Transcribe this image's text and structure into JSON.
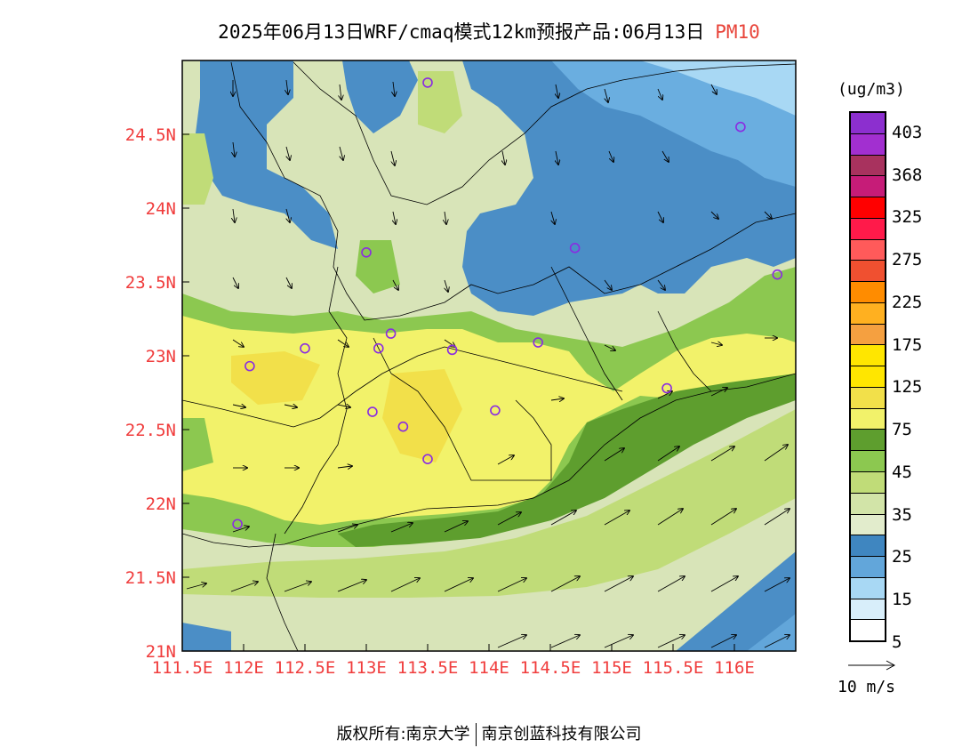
{
  "title": {
    "main": "2025年06月13日WRF/cmaq模式12km预报产品:06月13日",
    "pollutant": "PM10"
  },
  "map": {
    "lon_labels": [
      "111.5E",
      "112E",
      "112.5E",
      "113E",
      "113.5E",
      "114E",
      "114.5E",
      "115E",
      "115.5E",
      "116E"
    ],
    "lat_labels": [
      "24.5N",
      "24N",
      "23.5N",
      "23N",
      "22.5N",
      "22N",
      "21.5N",
      "21N"
    ],
    "lon_values": [
      111.5,
      112,
      112.5,
      113,
      113.5,
      114,
      114.5,
      115,
      115.5,
      116
    ],
    "lat_values": [
      24.5,
      24,
      23.5,
      23,
      22.5,
      22,
      21.5,
      21
    ],
    "lon_range": [
      111.5,
      116.5
    ],
    "lat_range": [
      21,
      25
    ],
    "accent_label_color": "#f03c3c",
    "station_color": "#8a2be2",
    "stations": [
      {
        "lon": 113.5,
        "lat": 24.85
      },
      {
        "lon": 116.05,
        "lat": 24.55
      },
      {
        "lon": 113.0,
        "lat": 23.7
      },
      {
        "lon": 114.7,
        "lat": 23.73
      },
      {
        "lon": 116.35,
        "lat": 23.55
      },
      {
        "lon": 112.5,
        "lat": 23.05
      },
      {
        "lon": 113.1,
        "lat": 23.05
      },
      {
        "lon": 113.2,
        "lat": 23.15
      },
      {
        "lon": 113.7,
        "lat": 23.04
      },
      {
        "lon": 114.4,
        "lat": 23.09
      },
      {
        "lon": 112.05,
        "lat": 22.93
      },
      {
        "lon": 115.45,
        "lat": 22.78
      },
      {
        "lon": 113.05,
        "lat": 22.62
      },
      {
        "lon": 113.3,
        "lat": 22.52
      },
      {
        "lon": 114.05,
        "lat": 22.63
      },
      {
        "lon": 113.5,
        "lat": 22.3
      },
      {
        "lon": 111.95,
        "lat": 21.86
      }
    ]
  },
  "colorbar": {
    "units": "(ug/m3)",
    "labels": [
      "403",
      "368",
      "325",
      "275",
      "225",
      "175",
      "125",
      "75",
      "45",
      "35",
      "25",
      "15",
      "5"
    ],
    "colors": [
      "#8c2fcf",
      "#a22fd0",
      "#a8325e",
      "#c61c78",
      "#ff0000",
      "#ff1a4a",
      "#ff5a5a",
      "#f05030",
      "#ff8c00",
      "#ffb020",
      "#f5a040",
      "#ffe600",
      "#ffe600",
      "#f2e04a",
      "#f2f26a",
      "#5e9e2e",
      "#8cc850",
      "#c0dc78",
      "#d2e4a8",
      "#e2eccc",
      "#3f86c0",
      "#62a6da",
      "#a8d8f4",
      "#d8eefa",
      "#ffffff"
    ]
  },
  "wind_reference": {
    "label": "10 m/s"
  },
  "footer": {
    "left": "版权所有:南京大学",
    "right": "南京创蓝科技有限公司"
  }
}
